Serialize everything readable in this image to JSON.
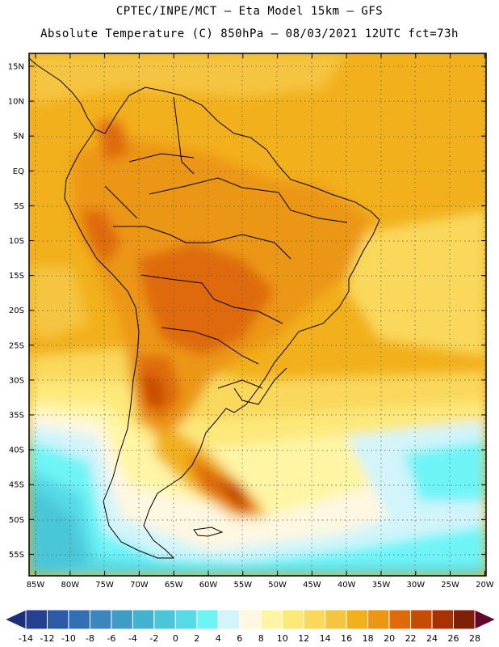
{
  "header": {
    "line1": "CPTEC/INPE/MCT –  Eta Model 15km – GFS",
    "line2": "Absolute Temperature (C) 850hPa – 08/03/2021 12UTC fct=73h"
  },
  "map": {
    "lat_labels": [
      "15N",
      "10N",
      "5N",
      "EQ",
      "5S",
      "10S",
      "15S",
      "20S",
      "25S",
      "30S",
      "35S",
      "40S",
      "45S",
      "50S",
      "55S"
    ],
    "lon_labels": [
      "85W",
      "80W",
      "75W",
      "70W",
      "65W",
      "60W",
      "55W",
      "50W",
      "45W",
      "40W",
      "35W",
      "30W",
      "25W",
      "20W"
    ],
    "grid": "dotted"
  },
  "colorbar": {
    "labels": [
      "-14",
      "-12",
      "-10",
      "-8",
      "-6",
      "-4",
      "-2",
      "0",
      "2",
      "4",
      "6",
      "8",
      "10",
      "12",
      "14",
      "16",
      "18",
      "20",
      "22",
      "24",
      "26",
      "28"
    ],
    "colors": [
      "#24418f",
      "#2d5aa6",
      "#3370b3",
      "#3a86bd",
      "#3f9cc4",
      "#43b2cc",
      "#4ac6d8",
      "#57d9e6",
      "#6ef4f7",
      "#d2f4fa",
      "#fff7e1",
      "#fff5a5",
      "#fde87a",
      "#f9d85c",
      "#f5c441",
      "#f2b01c",
      "#ec9616",
      "#df6a09",
      "#c84b05",
      "#a93205",
      "#7e2008"
    ],
    "under_color": "#1d2f78",
    "over_color": "#65072a"
  }
}
